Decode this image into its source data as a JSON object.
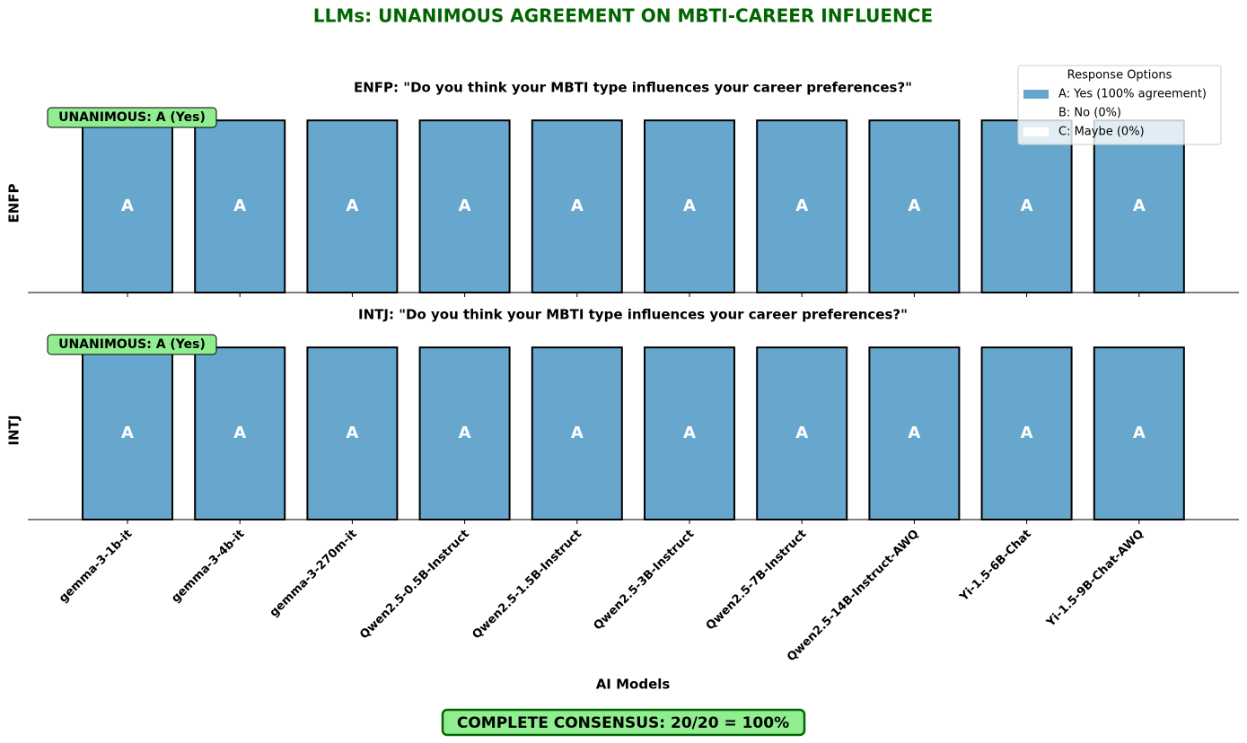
{
  "title": "LLMs: UNANIMOUS AGREEMENT ON MBTI-CAREER INFLUENCE",
  "xlabel": "AI Models",
  "footer": "COMPLETE CONSENSUS: 20/20 = 100%",
  "legend": {
    "title": "Response Options",
    "position": "upper right"
  },
  "chart_data": [
    {
      "type": "bar",
      "stacked": true,
      "title": "ENFP: \"Do you think your MBTI type influences your career preferences?\"",
      "ylabel": "ENFP",
      "annotation": "UNANIMOUS: A (Yes)",
      "ylim": [
        0,
        1.1
      ],
      "series": [
        {
          "name": "A: Yes (100% agreement)",
          "color": "#67a7cd",
          "values": [
            1,
            1,
            1,
            1,
            1,
            1,
            1,
            1,
            1,
            1
          ],
          "value_labels": [
            "A",
            "A",
            "A",
            "A",
            "A",
            "A",
            "A",
            "A",
            "A",
            "A"
          ]
        },
        {
          "name": "B: No (0%)",
          "color": "#ffffff",
          "values": [
            0,
            0,
            0,
            0,
            0,
            0,
            0,
            0,
            0,
            0
          ]
        },
        {
          "name": "C: Maybe (0%)",
          "color": "#ffffff",
          "values": [
            0,
            0,
            0,
            0,
            0,
            0,
            0,
            0,
            0,
            0
          ]
        }
      ]
    },
    {
      "type": "bar",
      "stacked": true,
      "title": "INTJ: \"Do you think your MBTI type influences your career preferences?\"",
      "ylabel": "INTJ",
      "annotation": "UNANIMOUS: A (Yes)",
      "ylim": [
        0,
        1.1
      ],
      "categories": [
        "gemma-3-1b-it",
        "gemma-3-4b-it",
        "gemma-3-270m-it",
        "Qwen2.5-0.5B-Instruct",
        "Qwen2.5-1.5B-Instruct",
        "Qwen2.5-3B-Instruct",
        "Qwen2.5-7B-Instruct",
        "Qwen2.5-14B-Instruct-AWQ",
        "Yi-1.5-6B-Chat",
        "Yi-1.5-9B-Chat-AWQ"
      ],
      "series": [
        {
          "name": "A: Yes (100% agreement)",
          "color": "#67a7cd",
          "values": [
            1,
            1,
            1,
            1,
            1,
            1,
            1,
            1,
            1,
            1
          ],
          "value_labels": [
            "A",
            "A",
            "A",
            "A",
            "A",
            "A",
            "A",
            "A",
            "A",
            "A"
          ]
        },
        {
          "name": "B: No (0%)",
          "color": "#ffffff",
          "values": [
            0,
            0,
            0,
            0,
            0,
            0,
            0,
            0,
            0,
            0
          ]
        },
        {
          "name": "C: Maybe (0%)",
          "color": "#ffffff",
          "values": [
            0,
            0,
            0,
            0,
            0,
            0,
            0,
            0,
            0,
            0
          ]
        }
      ]
    }
  ]
}
